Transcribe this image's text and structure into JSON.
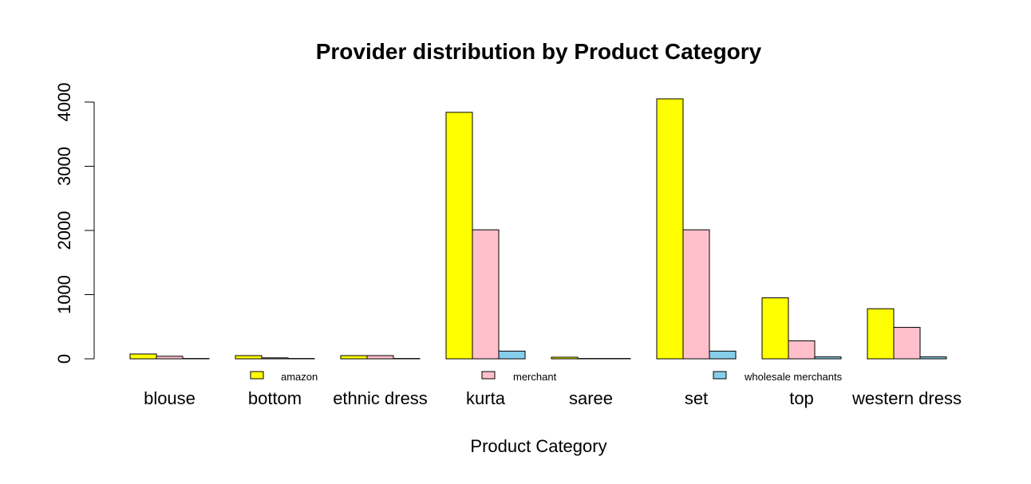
{
  "chart_data": {
    "type": "bar",
    "title": "Provider distribution by Product Category",
    "xlabel": "Product Category",
    "ylabel": "",
    "categories": [
      "blouse",
      "bottom",
      "ethnic dress",
      "kurta",
      "saree",
      "set",
      "top",
      "western dress"
    ],
    "series": [
      {
        "name": "amazon",
        "color": "#ffff00",
        "values": [
          75,
          50,
          50,
          3840,
          25,
          4050,
          950,
          780
        ]
      },
      {
        "name": "merchant",
        "color": "#ffc0cb",
        "values": [
          40,
          15,
          50,
          2010,
          5,
          2010,
          280,
          490
        ]
      },
      {
        "name": "wholesale merchants",
        "color": "#87ceeb",
        "values": [
          5,
          5,
          5,
          120,
          5,
          120,
          30,
          30
        ]
      }
    ],
    "ylim": [
      0,
      4000
    ],
    "yticks": [
      0,
      1000,
      2000,
      3000,
      4000
    ],
    "legend_position": "bottom",
    "grid": false
  }
}
